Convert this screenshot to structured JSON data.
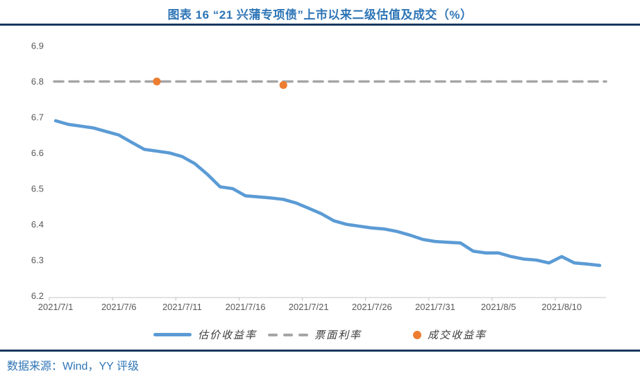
{
  "header": {
    "title": "图表 16 “21 兴蒲专项债”上市以来二级估值及成交（%）"
  },
  "footer": {
    "source": "数据来源：Wind，YY 评级"
  },
  "colors": {
    "title_blue": "#2E75B6",
    "rule_navy": "#17375E",
    "line_blue": "#5B9BD5",
    "dash_gray": "#A5A5A5",
    "dot_orange": "#ED7D31",
    "tick_gray": "#595959",
    "axis_gray": "#D9D9D9"
  },
  "chart_data": {
    "type": "line",
    "title": "图表 16 “21 兴蒲专项债”上市以来二级估值及成交（%）",
    "x": [
      "2021/7/1",
      "2021/7/2",
      "2021/7/3",
      "2021/7/4",
      "2021/7/5",
      "2021/7/6",
      "2021/7/7",
      "2021/7/8",
      "2021/7/9",
      "2021/7/10",
      "2021/7/11",
      "2021/7/12",
      "2021/7/13",
      "2021/7/14",
      "2021/7/15",
      "2021/7/16",
      "2021/7/17",
      "2021/7/18",
      "2021/7/19",
      "2021/7/20",
      "2021/7/21",
      "2021/7/22",
      "2021/7/23",
      "2021/7/24",
      "2021/7/25",
      "2021/7/26",
      "2021/7/27",
      "2021/7/28",
      "2021/7/29",
      "2021/7/30",
      "2021/7/31",
      "2021/8/1",
      "2021/8/2",
      "2021/8/3",
      "2021/8/4",
      "2021/8/5",
      "2021/8/6",
      "2021/8/7",
      "2021/8/8",
      "2021/8/9",
      "2021/8/10",
      "2021/8/11",
      "2021/8/12",
      "2021/8/13"
    ],
    "series": [
      {
        "name": "估价收益率",
        "type": "line",
        "color": "#5B9BD5",
        "values": [
          6.69,
          6.68,
          6.675,
          6.67,
          6.66,
          6.65,
          6.63,
          6.61,
          6.605,
          6.6,
          6.59,
          6.57,
          6.54,
          6.505,
          6.5,
          6.48,
          6.477,
          6.474,
          6.47,
          6.46,
          6.445,
          6.43,
          6.41,
          6.4,
          6.395,
          6.39,
          6.387,
          6.38,
          6.37,
          6.358,
          6.352,
          6.35,
          6.348,
          6.325,
          6.32,
          6.32,
          6.31,
          6.303,
          6.3,
          6.292,
          6.31,
          6.292,
          6.289,
          6.285
        ]
      },
      {
        "name": "票面利率",
        "type": "dashed-line",
        "color": "#A5A5A5",
        "value": 6.8
      },
      {
        "name": "成交收益率",
        "type": "scatter",
        "color": "#ED7D31",
        "points": [
          {
            "x": "2021/7/9",
            "y": 6.8
          },
          {
            "x": "2021/7/19",
            "y": 6.79
          }
        ]
      }
    ],
    "ylim": [
      6.2,
      6.9
    ],
    "ytick_step": 0.1,
    "ytick_labels": [
      "6.2",
      "6.3",
      "6.4",
      "6.5",
      "6.6",
      "6.7",
      "6.8",
      "6.9"
    ],
    "xtick_labels": [
      "2021/7/1",
      "2021/7/6",
      "2021/7/11",
      "2021/7/16",
      "2021/7/21",
      "2021/7/26",
      "2021/7/31",
      "2021/8/5",
      "2021/8/10"
    ],
    "grid": false,
    "legend_position": "bottom"
  }
}
